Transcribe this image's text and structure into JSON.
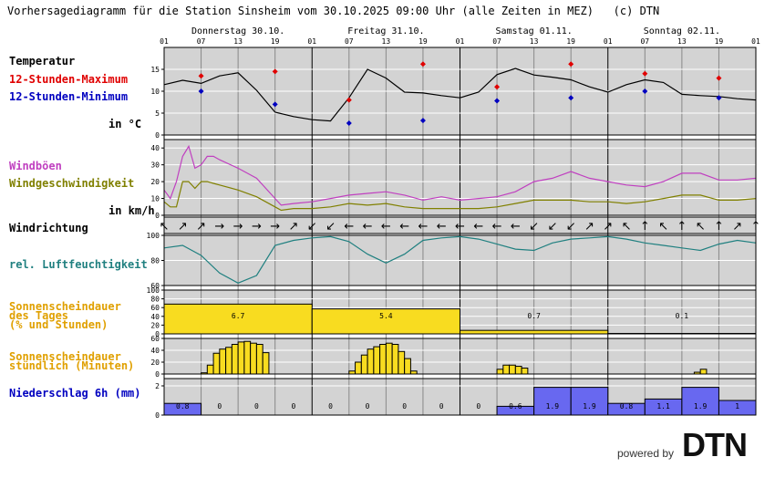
{
  "header": {
    "title": "Vorhersagediagramm für die Station Sinsheim vom 30.10.2025 09:00 Uhr (alle Zeiten in MEZ)   (c) DTN"
  },
  "labels": {
    "temperatur": "Temperatur",
    "max": "12-Stunden-Maximum",
    "min": "12-Stunden-Minimum",
    "temp_unit": "in °C",
    "boeen": "Windböen",
    "wind": "Windgeschwindigkeit",
    "wind_unit": "in km/h",
    "richtung": "Windrichtung",
    "feuchte": "rel. Luftfeuchtigkeit",
    "sonne_tag_1": "Sonnenscheindauer",
    "sonne_tag_2": "des Tages",
    "sonne_tag_3": "(% und Stunden)",
    "sonne_std_1": "Sonnenscheindauer",
    "sonne_std_2": "stündlich (Minuten)",
    "niederschlag": "Niederschlag 6h (mm)"
  },
  "footer": {
    "powered_by": "powered by",
    "logo": "DTN"
  },
  "colors": {
    "panel_bg": "#d3d3d3",
    "temp": "#000000",
    "max": "#e00000",
    "min": "#0000c0",
    "gust": "#c040c0",
    "wind": "#808000",
    "humidity": "#208080",
    "sun": "#f8dc20",
    "precip": "#6868f0",
    "label_sun": "#e0a000"
  },
  "chart_data": {
    "type": "line",
    "days": [
      "Donnerstag 30.10.",
      "Freitag 31.10.",
      "Samstag 01.11.",
      "Sonntag 02.11."
    ],
    "hour_ticks": [
      "01",
      "07",
      "13",
      "19",
      "01",
      "07",
      "13",
      "19",
      "01",
      "07",
      "13",
      "19",
      "01",
      "07",
      "13",
      "19",
      "01"
    ],
    "temperature": {
      "ylim": [
        0,
        20
      ],
      "yticks": [
        0,
        5,
        10,
        15
      ],
      "hours": [
        0,
        3,
        6,
        9,
        12,
        15,
        18,
        21,
        24,
        27,
        30,
        33,
        36,
        39,
        42,
        45,
        48,
        51,
        54,
        57,
        60,
        63,
        66,
        69,
        72,
        75,
        78,
        81,
        84,
        87,
        90,
        93,
        96
      ],
      "values": [
        11.5,
        12.5,
        11.8,
        13.5,
        14.2,
        10.2,
        5.2,
        4.2,
        3.5,
        3.2,
        8.5,
        15.0,
        13.0,
        9.8,
        9.6,
        9.0,
        8.5,
        9.8,
        13.8,
        15.2,
        13.7,
        13.2,
        12.6,
        11.0,
        9.8,
        11.5,
        12.6,
        12.0,
        9.3,
        9.0,
        8.8,
        8.3,
        8.0
      ],
      "max_12h": [
        {
          "h": 6,
          "v": 13.5
        },
        {
          "h": 18,
          "v": 14.5
        },
        {
          "h": 30,
          "v": 8.0
        },
        {
          "h": 42,
          "v": 16.2
        },
        {
          "h": 54,
          "v": 11.0
        },
        {
          "h": 66,
          "v": 16.2
        },
        {
          "h": 78,
          "v": 14.0
        },
        {
          "h": 90,
          "v": 13.0
        }
      ],
      "min_12h": [
        {
          "h": 6,
          "v": 10.0
        },
        {
          "h": 18,
          "v": 7.0
        },
        {
          "h": 30,
          "v": 2.7
        },
        {
          "h": 42,
          "v": 3.3
        },
        {
          "h": 54,
          "v": 7.8
        },
        {
          "h": 66,
          "v": 8.5
        },
        {
          "h": 78,
          "v": 10.0
        },
        {
          "h": 90,
          "v": 8.5
        }
      ]
    },
    "wind": {
      "ylim": [
        0,
        45
      ],
      "yticks": [
        0,
        10,
        20,
        30,
        40
      ],
      "hours": [
        0,
        1,
        2,
        3,
        4,
        5,
        6,
        7,
        8,
        9,
        12,
        15,
        18,
        19,
        21,
        24,
        27,
        30,
        33,
        36,
        39,
        42,
        45,
        48,
        51,
        54,
        57,
        60,
        63,
        66,
        69,
        72,
        75,
        78,
        81,
        84,
        87,
        90,
        93,
        96
      ],
      "gust": [
        15,
        10,
        20,
        35,
        41,
        28,
        30,
        35,
        35,
        33,
        28,
        22,
        10,
        6,
        7,
        8,
        10,
        12,
        13,
        14,
        12,
        9,
        11,
        9,
        10,
        11,
        14,
        20,
        22,
        26,
        22,
        20,
        18,
        17,
        20,
        25,
        25,
        21,
        21,
        22
      ],
      "speed": [
        8,
        5,
        5,
        20,
        20,
        16,
        20,
        20,
        19,
        18,
        15,
        11,
        5,
        3,
        4,
        4,
        5,
        7,
        6,
        7,
        5,
        4,
        4,
        4,
        4,
        5,
        7,
        9,
        9,
        9,
        8,
        8,
        7,
        8,
        10,
        12,
        12,
        9,
        9,
        10
      ]
    },
    "wind_direction": {
      "hours": [
        0,
        3,
        6,
        9,
        12,
        15,
        18,
        21,
        24,
        27,
        30,
        33,
        36,
        39,
        42,
        45,
        48,
        51,
        54,
        57,
        60,
        63,
        66,
        69,
        72,
        75,
        78,
        81,
        84,
        87,
        90,
        93,
        96
      ],
      "arrows": [
        "↖",
        "↗",
        "↗",
        "→",
        "→",
        "→",
        "→",
        "↗",
        "↙",
        "↙",
        "←",
        "←",
        "←",
        "←",
        "←",
        "←",
        "←",
        "←",
        "←",
        "←",
        "↙",
        "↙",
        "↙",
        "↗",
        "↗",
        "↖",
        "↑",
        "↖",
        "↑",
        "↖",
        "↑",
        "↗",
        "↑"
      ]
    },
    "humidity": {
      "ylim": [
        60,
        100
      ],
      "yticks": [
        60,
        80,
        100
      ],
      "hours": [
        0,
        3,
        6,
        9,
        12,
        15,
        18,
        21,
        24,
        27,
        30,
        33,
        36,
        39,
        42,
        45,
        48,
        51,
        54,
        57,
        60,
        63,
        66,
        69,
        72,
        75,
        78,
        81,
        84,
        87,
        90,
        93,
        96
      ],
      "values": [
        90,
        92,
        84,
        70,
        62,
        68,
        92,
        96,
        98,
        99,
        95,
        85,
        78,
        85,
        96,
        98,
        99,
        97,
        93,
        89,
        88,
        94,
        97,
        98,
        99,
        97,
        94,
        92,
        90,
        88,
        93,
        96,
        94
      ]
    },
    "sunshine_daily": {
      "ylim": [
        0,
        100
      ],
      "yticks": [
        0,
        20,
        40,
        60,
        80,
        100
      ],
      "percent": [
        68,
        57,
        8,
        1
      ],
      "hours_labels": [
        "6.7",
        "5.4",
        "0.7",
        "0.1"
      ]
    },
    "sunshine_hourly": {
      "ylim": [
        0,
        60
      ],
      "yticks": [
        0,
        20,
        40,
        60
      ],
      "hours": [
        6,
        7,
        8,
        9,
        10,
        11,
        12,
        13,
        14,
        15,
        16,
        30,
        31,
        32,
        33,
        34,
        35,
        36,
        37,
        38,
        39,
        40,
        54,
        55,
        56,
        57,
        58,
        86,
        87
      ],
      "minutes": [
        2,
        15,
        35,
        42,
        45,
        50,
        54,
        55,
        52,
        50,
        36,
        5,
        20,
        32,
        42,
        46,
        50,
        52,
        50,
        38,
        26,
        5,
        8,
        15,
        15,
        13,
        10,
        3,
        8
      ]
    },
    "precipitation_6h": {
      "ylim": [
        0,
        2.5
      ],
      "yticks": [
        0,
        2
      ],
      "values": [
        0.8,
        0,
        0,
        0,
        0,
        0,
        0,
        0,
        0,
        0.6,
        1.9,
        1.9,
        0.8,
        1.1,
        1.9,
        1
      ],
      "labels": [
        "0.8",
        "0",
        "0",
        "0",
        "0",
        "0",
        "0",
        "0",
        "0",
        "0.6",
        "1.9",
        "1.9",
        "0.8",
        "1.1",
        "1.9",
        "1"
      ]
    }
  }
}
